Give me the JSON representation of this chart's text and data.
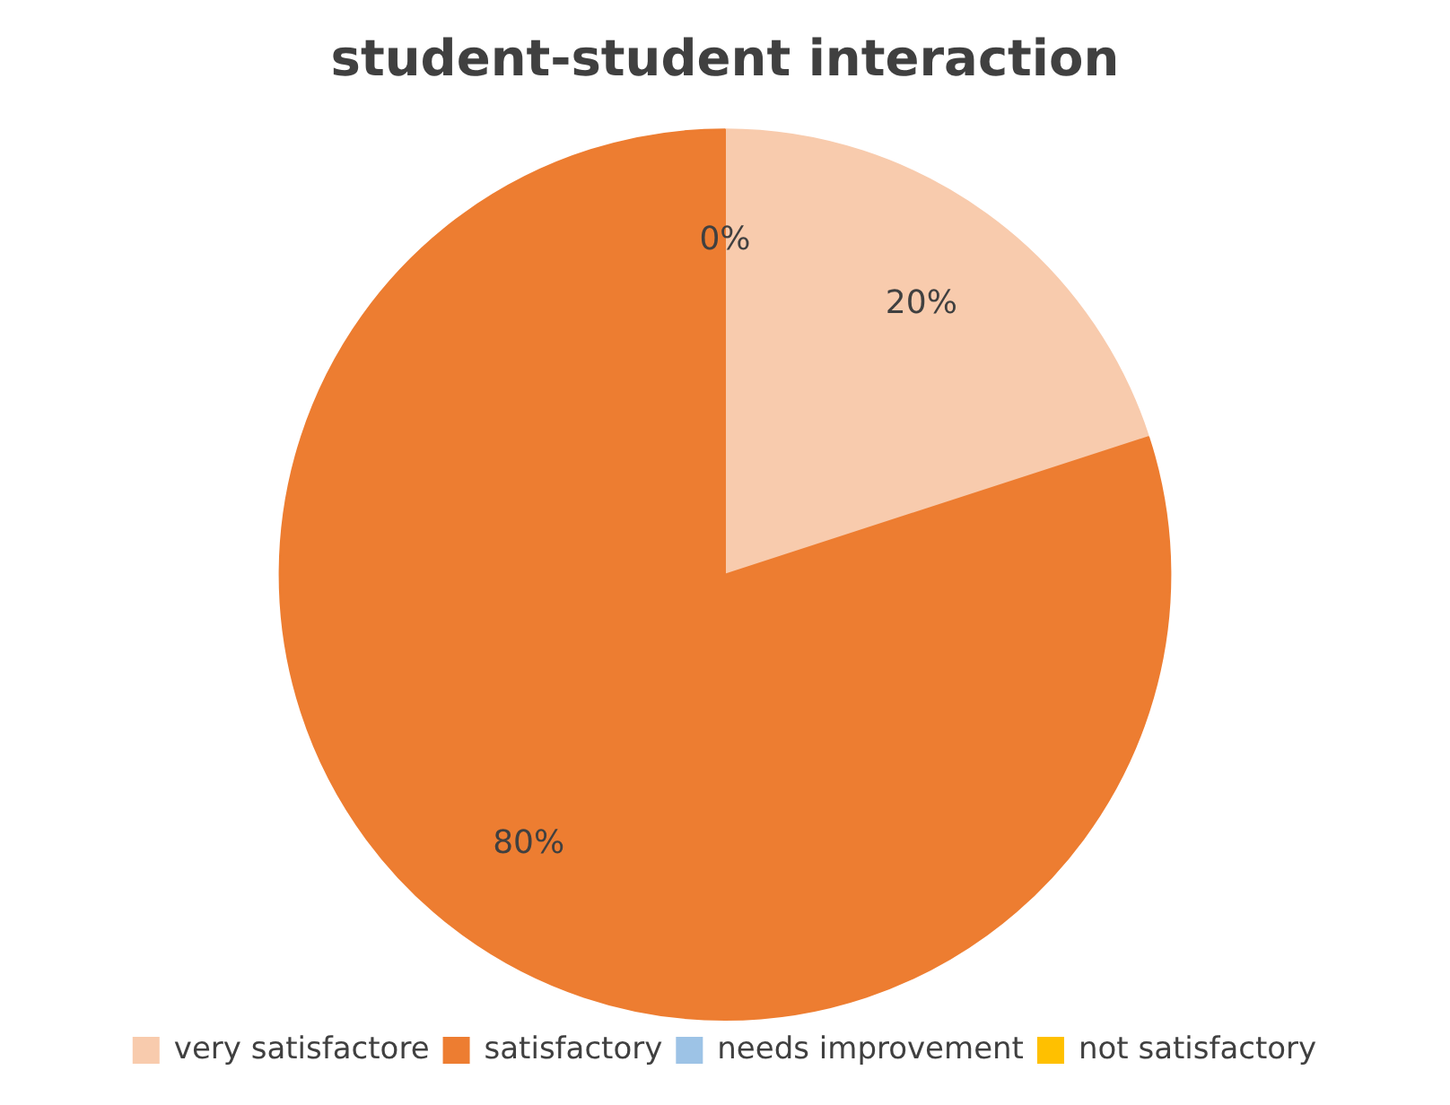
{
  "chart_data": {
    "type": "pie",
    "title": "student-student interaction",
    "categories": [
      "very satisfactore",
      "satisfactory",
      "needs improvement",
      "not satisfactory"
    ],
    "values": [
      20,
      80,
      0,
      0
    ],
    "colors": [
      "#f8cbad",
      "#ed7d31",
      "#9dc3e6",
      "#ffc000"
    ],
    "value_labels": [
      "20%",
      "80%",
      "0%",
      null
    ],
    "legend": "bottom"
  }
}
